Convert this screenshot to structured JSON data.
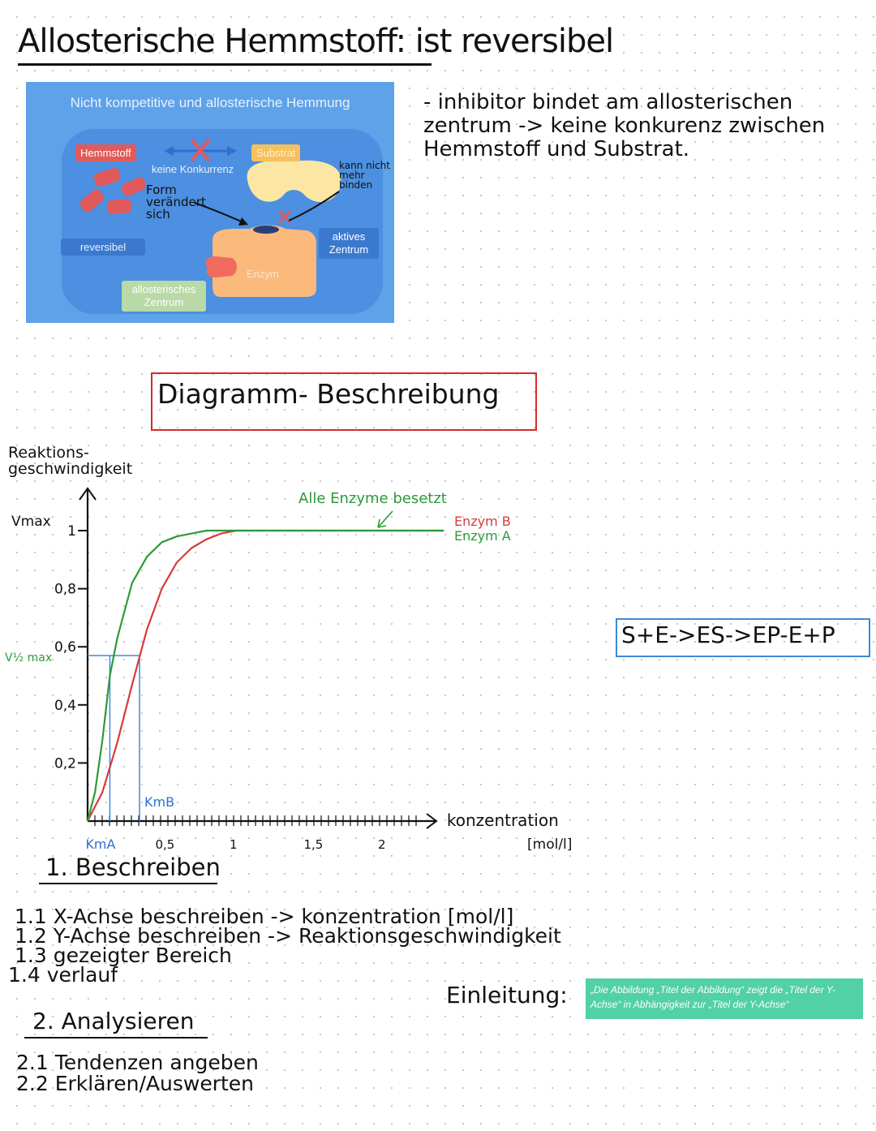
{
  "title": "Allosterische Hemmstoff: ist reversibel",
  "figure": {
    "title": "Nicht kompetitive und allosterische Hemmung",
    "tag_hemmstoff": "Hemmstoff",
    "tag_substrat": "Substrat",
    "keine_konkurrenz": "keine Konkurrenz",
    "form_veraendert": "Form verändert sich",
    "kann_nicht": "kann nicht mehr binden",
    "reversibel": "reversibel",
    "aktives_zentrum": "aktives Zentrum",
    "enzym": "Enzym",
    "allosterisches_zentrum": "allosterisches Zentrum"
  },
  "note": "- inhibitor bindet am allosterischen zentrum -> keine konkurenz zwischen Hemmstoff und Substrat.",
  "diagram_heading": "Diagramm- Beschreibung",
  "equation": "S+E->ES->EP-E+P",
  "chart_data": {
    "type": "line",
    "xlabel": "konzentration [mol/l]",
    "ylabel": "Reaktions- geschwindigkeit",
    "x_ticks": [
      "0,5",
      "1",
      "1,5",
      "2"
    ],
    "y_ticks": [
      "0,2",
      "0,4",
      "0,6",
      "0,8",
      "1"
    ],
    "xlim": [
      0,
      2.5
    ],
    "ylim": [
      0,
      1.05
    ],
    "vmax_label": "Vmax",
    "vhalf_label": "V½ max",
    "annotation": "Alle Enzyme besetzt",
    "km_a_label": "KmA",
    "km_b_label": "KmB",
    "km_a": 0.15,
    "km_b": 0.35,
    "v_half": 0.57,
    "series": [
      {
        "name": "Enzym B",
        "color": "#d93a3a",
        "x": [
          0,
          0.1,
          0.2,
          0.3,
          0.4,
          0.5,
          0.6,
          0.7,
          0.8,
          0.9,
          1.0,
          1.2,
          1.4,
          1.6,
          1.8,
          2.0,
          2.2,
          2.4
        ],
        "y": [
          0,
          0.1,
          0.27,
          0.47,
          0.66,
          0.8,
          0.89,
          0.94,
          0.97,
          0.99,
          1.0,
          1.0,
          1.0,
          1.0,
          1.0,
          1.0,
          1.0,
          1.0
        ]
      },
      {
        "name": "Enzym A",
        "color": "#2e9a3a",
        "x": [
          0,
          0.05,
          0.1,
          0.15,
          0.2,
          0.3,
          0.4,
          0.5,
          0.6,
          0.7,
          0.8,
          1.0,
          1.2,
          1.4,
          1.6,
          1.8,
          2.0,
          2.2,
          2.4
        ],
        "y": [
          0,
          0.1,
          0.28,
          0.5,
          0.63,
          0.82,
          0.91,
          0.96,
          0.98,
          0.99,
          1.0,
          1.0,
          1.0,
          1.0,
          1.0,
          1.0,
          1.0,
          1.0,
          1.0
        ]
      }
    ]
  },
  "section1": {
    "heading": "1. Beschreiben",
    "items": [
      "1.1 X-Achse beschreiben -> konzentration [mol/l]",
      "1.2 Y-Achse beschreiben -> Reaktionsgeschwindigkeit",
      "1.3 gezeigter Bereich",
      "1.4 verlauf"
    ]
  },
  "section2": {
    "heading": "2. Analysieren",
    "items": [
      "2.1 Tendenzen angeben",
      "2.2 Erklären/Auswerten"
    ]
  },
  "einleitung": {
    "label": "Einleitung:",
    "text": "„Die Abbildung „Titel der Abbildung“ zeigt die „Titel der Y-Achse“ in Abhängigkeit zur „Titel der Y-Achse“"
  }
}
